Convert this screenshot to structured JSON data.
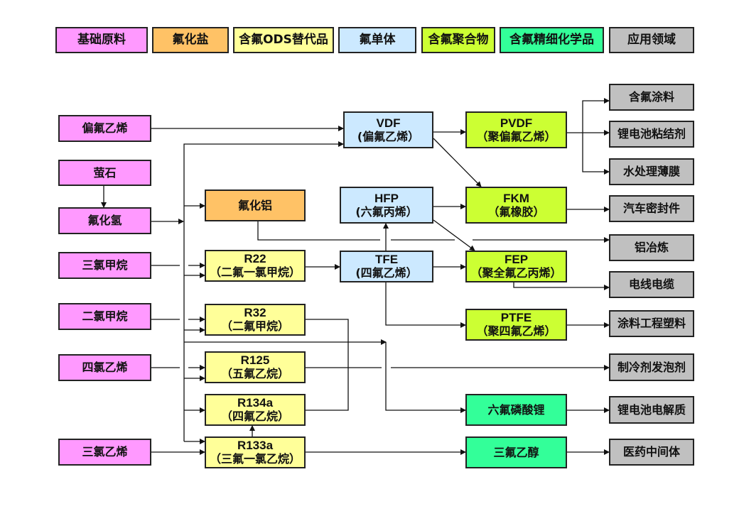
{
  "legend": [
    {
      "id": "lg-base",
      "label": "基础原料",
      "cls": "c-base",
      "color": "#ff99ff"
    },
    {
      "id": "lg-salt",
      "label": "氟化盐",
      "cls": "c-salt",
      "color": "#ffc266"
    },
    {
      "id": "lg-ods",
      "label": "含氟ODS替代品",
      "cls": "c-ods",
      "color": "#ffff99"
    },
    {
      "id": "lg-mono",
      "label": "氟单体",
      "cls": "c-mono",
      "color": "#cce9ff"
    },
    {
      "id": "lg-poly",
      "label": "含氟聚合物",
      "cls": "c-poly",
      "color": "#ccff33"
    },
    {
      "id": "lg-fine",
      "label": "含氟精细化学品",
      "cls": "c-fine",
      "color": "#33ff99"
    },
    {
      "id": "lg-app",
      "label": "应用领域",
      "cls": "c-app",
      "color": "#c0c0c0"
    }
  ],
  "nodes": [
    {
      "id": "pianfu",
      "line1": "偏氟乙烯",
      "cls": "c-base"
    },
    {
      "id": "yingshi",
      "line1": "萤石",
      "cls": "c-base"
    },
    {
      "id": "fuhuaqing",
      "line1": "氟化氢",
      "cls": "c-base"
    },
    {
      "id": "sanlvjiawan",
      "line1": "三氯甲烷",
      "cls": "c-base"
    },
    {
      "id": "erlvjiawan",
      "line1": "二氯甲烷",
      "cls": "c-base"
    },
    {
      "id": "silvyixi",
      "line1": "四氯乙烯",
      "cls": "c-base"
    },
    {
      "id": "sanlvyixi",
      "line1": "三氯乙烯",
      "cls": "c-base"
    },
    {
      "id": "fuhualv",
      "line1": "氟化铝",
      "cls": "c-salt"
    },
    {
      "id": "r22",
      "line1": "R22",
      "line2": "（二氟一氯甲烷）",
      "cls": "c-ods"
    },
    {
      "id": "r32",
      "line1": "R32",
      "line2": "（二氟甲烷）",
      "cls": "c-ods"
    },
    {
      "id": "r125",
      "line1": "R125",
      "line2": "（五氟乙烷）",
      "cls": "c-ods"
    },
    {
      "id": "r134a",
      "line1": "R134a",
      "line2": "（四氟乙烷）",
      "cls": "c-ods"
    },
    {
      "id": "r133a",
      "line1": "R133a",
      "line2": "（三氟一氯乙烷）",
      "cls": "c-ods"
    },
    {
      "id": "vdf",
      "line1": "VDF",
      "line2": "(偏氟乙烯）",
      "cls": "c-mono"
    },
    {
      "id": "hfp",
      "line1": "HFP",
      "line2": "(六氟丙烯）",
      "cls": "c-mono"
    },
    {
      "id": "tfe",
      "line1": "TFE",
      "line2": "(四氟乙烯）",
      "cls": "c-mono"
    },
    {
      "id": "pvdf",
      "line1": "PVDF",
      "line2": "（聚偏氟乙烯）",
      "cls": "c-poly"
    },
    {
      "id": "fkm",
      "line1": "FKM",
      "line2": "（氟橡胶）",
      "cls": "c-poly"
    },
    {
      "id": "fep",
      "line1": "FEP",
      "line2": "（聚全氟乙丙烯）",
      "cls": "c-poly"
    },
    {
      "id": "ptfe",
      "line1": "PTFE",
      "line2": "（聚四氟乙烯）",
      "cls": "c-poly"
    },
    {
      "id": "lipf6",
      "line1": "六氟磷酸锂",
      "cls": "c-fine"
    },
    {
      "id": "sanfuyichun",
      "line1": "三氟乙醇",
      "cls": "c-fine"
    },
    {
      "id": "app1",
      "line1": "含氟涂料",
      "cls": "c-app"
    },
    {
      "id": "app2",
      "line1": "锂电池粘结剂",
      "cls": "c-app"
    },
    {
      "id": "app3",
      "line1": "水处理薄膜",
      "cls": "c-app"
    },
    {
      "id": "app4",
      "line1": "汽车密封件",
      "cls": "c-app"
    },
    {
      "id": "app5",
      "line1": "铝冶炼",
      "cls": "c-app"
    },
    {
      "id": "app6",
      "line1": "电线电缆",
      "cls": "c-app"
    },
    {
      "id": "app7",
      "line1": "涂料工程塑料",
      "cls": "c-app"
    },
    {
      "id": "app8",
      "line1": "制冷剂发泡剂",
      "cls": "c-app"
    },
    {
      "id": "app9",
      "line1": "锂电池电解质",
      "cls": "c-app"
    },
    {
      "id": "app10",
      "line1": "医药中间体",
      "cls": "c-app"
    }
  ]
}
